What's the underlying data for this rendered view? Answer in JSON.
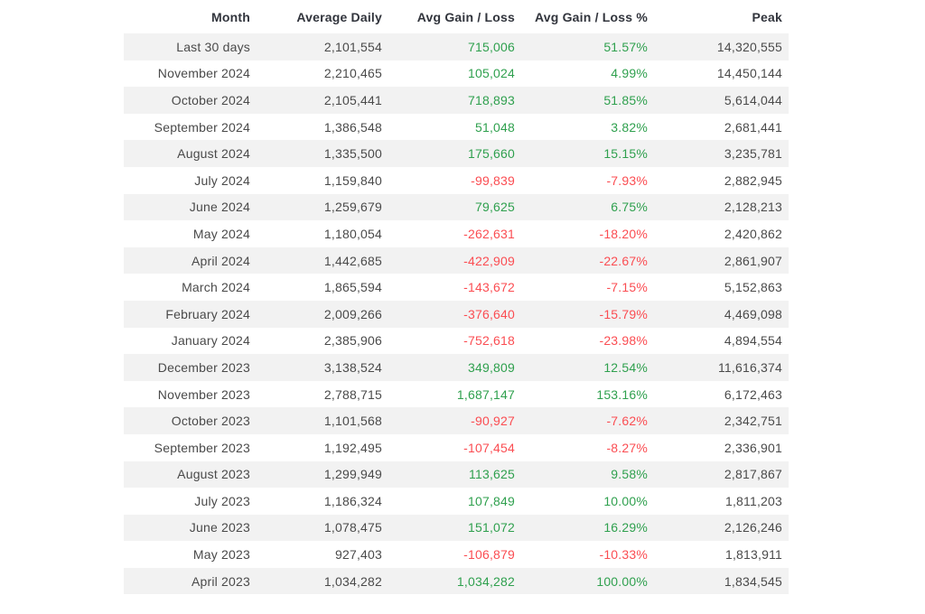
{
  "chart_data": {
    "type": "table",
    "title": "",
    "columns": [
      "Month",
      "Average Daily",
      "Avg Gain / Loss",
      "Avg Gain / Loss %",
      "Peak"
    ],
    "rows": [
      [
        "Last 30 days",
        "2,101,554",
        "715,006",
        "51.57%",
        "14,320,555"
      ],
      [
        "November 2024",
        "2,210,465",
        "105,024",
        "4.99%",
        "14,450,144"
      ],
      [
        "October 2024",
        "2,105,441",
        "718,893",
        "51.85%",
        "5,614,044"
      ],
      [
        "September 2024",
        "1,386,548",
        "51,048",
        "3.82%",
        "2,681,441"
      ],
      [
        "August 2024",
        "1,335,500",
        "175,660",
        "15.15%",
        "3,235,781"
      ],
      [
        "July 2024",
        "1,159,840",
        "-99,839",
        "-7.93%",
        "2,882,945"
      ],
      [
        "June 2024",
        "1,259,679",
        "79,625",
        "6.75%",
        "2,128,213"
      ],
      [
        "May 2024",
        "1,180,054",
        "-262,631",
        "-18.20%",
        "2,420,862"
      ],
      [
        "April 2024",
        "1,442,685",
        "-422,909",
        "-22.67%",
        "2,861,907"
      ],
      [
        "March 2024",
        "1,865,594",
        "-143,672",
        "-7.15%",
        "5,152,863"
      ],
      [
        "February 2024",
        "2,009,266",
        "-376,640",
        "-15.79%",
        "4,469,098"
      ],
      [
        "January 2024",
        "2,385,906",
        "-752,618",
        "-23.98%",
        "4,894,554"
      ],
      [
        "December 2023",
        "3,138,524",
        "349,809",
        "12.54%",
        "11,616,374"
      ],
      [
        "November 2023",
        "2,788,715",
        "1,687,147",
        "153.16%",
        "6,172,463"
      ],
      [
        "October 2023",
        "1,101,568",
        "-90,927",
        "-7.62%",
        "2,342,751"
      ],
      [
        "September 2023",
        "1,192,495",
        "-107,454",
        "-8.27%",
        "2,336,901"
      ],
      [
        "August 2023",
        "1,299,949",
        "113,625",
        "9.58%",
        "2,817,867"
      ],
      [
        "July 2023",
        "1,186,324",
        "107,849",
        "10.00%",
        "1,811,203"
      ],
      [
        "June 2023",
        "1,078,475",
        "151,072",
        "16.29%",
        "2,126,246"
      ],
      [
        "May 2023",
        "927,403",
        "-106,879",
        "-10.33%",
        "1,813,911"
      ],
      [
        "April 2023",
        "1,034,282",
        "1,034,282",
        "100.00%",
        "1,834,545"
      ]
    ],
    "layout": {
      "striping": "odd rows shaded",
      "alignment": "all columns right-aligned",
      "grid": "off"
    }
  },
  "colors": {
    "positive": "#2fa04e",
    "negative": "#fb4d52",
    "stripe": "#f2f2f2",
    "header_text": "#31343c",
    "body_text": "#4a4a4a"
  }
}
